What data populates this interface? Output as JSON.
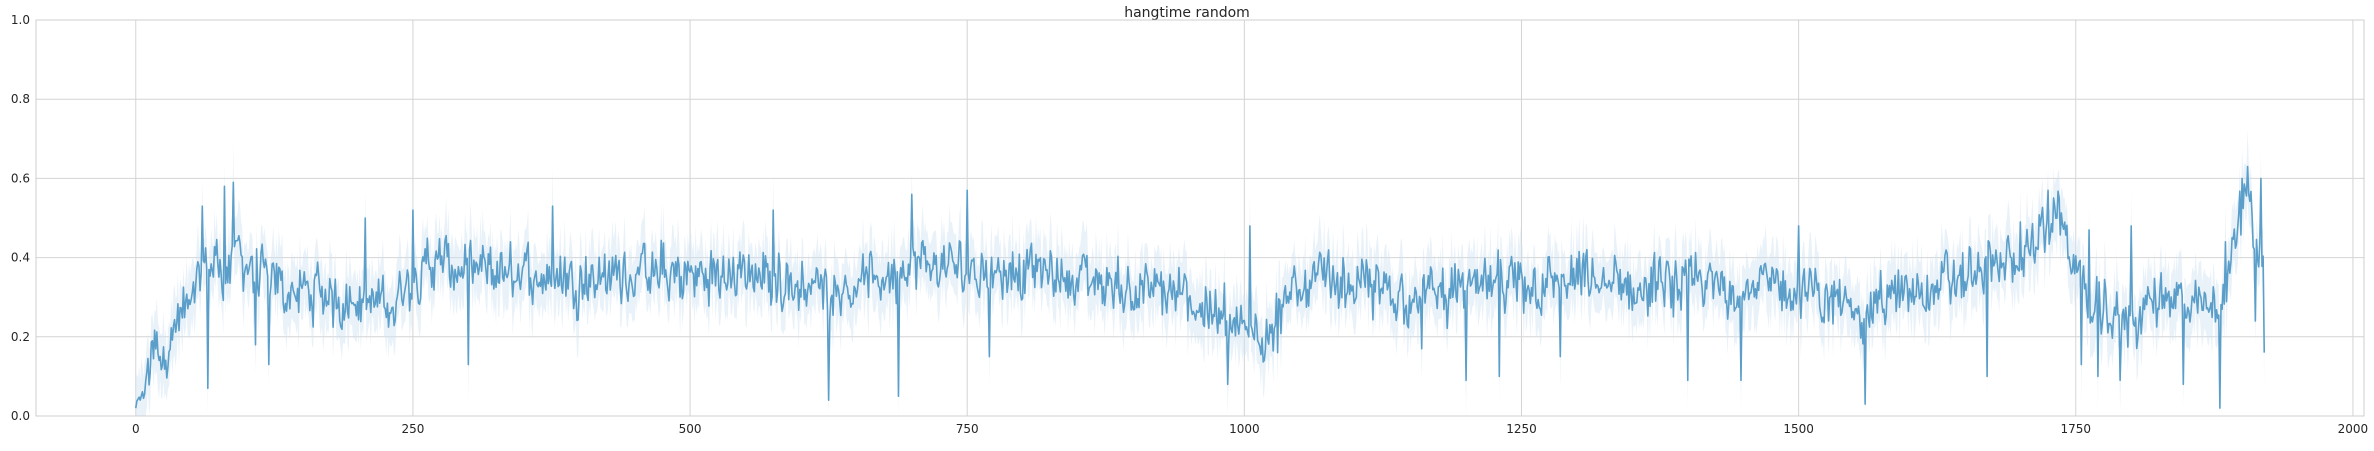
{
  "chart_data": {
    "type": "line",
    "title": "hangtime random",
    "xlabel": "",
    "ylabel": "",
    "xlim": [
      -90,
      2010
    ],
    "ylim": [
      0.0,
      1.0
    ],
    "xticks": [
      0,
      250,
      500,
      750,
      1000,
      1250,
      1500,
      1750,
      2000
    ],
    "xtick_labels": [
      "0",
      "250",
      "500",
      "750",
      "1000",
      "1250",
      "1500",
      "1750",
      "2000"
    ],
    "yticks": [
      0.0,
      0.2,
      0.4,
      0.6,
      0.8,
      1.0
    ],
    "ytick_labels": [
      "0.0",
      "0.2",
      "0.4",
      "0.6",
      "0.8",
      "1.0"
    ],
    "grid": true,
    "legend": "none",
    "series": [
      {
        "x_start": 0,
        "x_end": 1920,
        "n_points": 1921,
        "color": "#5a9ec9",
        "band_color": "#cfe3f2",
        "band": "shaded confidence interval around line",
        "profile": [
          [
            0,
            0.03
          ],
          [
            8,
            0.06
          ],
          [
            15,
            0.18
          ],
          [
            25,
            0.16
          ],
          [
            35,
            0.22
          ],
          [
            50,
            0.28
          ],
          [
            60,
            0.36
          ],
          [
            70,
            0.4
          ],
          [
            80,
            0.36
          ],
          [
            90,
            0.42
          ],
          [
            100,
            0.38
          ],
          [
            120,
            0.33
          ],
          [
            150,
            0.31
          ],
          [
            180,
            0.3
          ],
          [
            200,
            0.3
          ],
          [
            230,
            0.27
          ],
          [
            250,
            0.36
          ],
          [
            270,
            0.39
          ],
          [
            300,
            0.36
          ],
          [
            350,
            0.36
          ],
          [
            400,
            0.35
          ],
          [
            450,
            0.36
          ],
          [
            500,
            0.35
          ],
          [
            550,
            0.36
          ],
          [
            600,
            0.33
          ],
          [
            650,
            0.33
          ],
          [
            700,
            0.38
          ],
          [
            750,
            0.37
          ],
          [
            800,
            0.37
          ],
          [
            850,
            0.35
          ],
          [
            900,
            0.32
          ],
          [
            940,
            0.3
          ],
          [
            960,
            0.28
          ],
          [
            980,
            0.25
          ],
          [
            1000,
            0.2
          ],
          [
            1020,
            0.23
          ],
          [
            1040,
            0.29
          ],
          [
            1060,
            0.34
          ],
          [
            1100,
            0.33
          ],
          [
            1150,
            0.3
          ],
          [
            1200,
            0.32
          ],
          [
            1250,
            0.33
          ],
          [
            1300,
            0.34
          ],
          [
            1350,
            0.32
          ],
          [
            1400,
            0.33
          ],
          [
            1450,
            0.33
          ],
          [
            1500,
            0.32
          ],
          [
            1550,
            0.27
          ],
          [
            1600,
            0.31
          ],
          [
            1650,
            0.35
          ],
          [
            1680,
            0.38
          ],
          [
            1700,
            0.4
          ],
          [
            1720,
            0.46
          ],
          [
            1735,
            0.51
          ],
          [
            1745,
            0.42
          ],
          [
            1760,
            0.28
          ],
          [
            1780,
            0.25
          ],
          [
            1800,
            0.24
          ],
          [
            1830,
            0.31
          ],
          [
            1860,
            0.26
          ],
          [
            1880,
            0.28
          ],
          [
            1890,
            0.4
          ],
          [
            1898,
            0.5
          ],
          [
            1905,
            0.57
          ],
          [
            1912,
            0.47
          ],
          [
            1920,
            0.35
          ]
        ],
        "extremes": [
          [
            0,
            0.02
          ],
          [
            60,
            0.53
          ],
          [
            65,
            0.07
          ],
          [
            80,
            0.58
          ],
          [
            88,
            0.59
          ],
          [
            108,
            0.18
          ],
          [
            120,
            0.13
          ],
          [
            207,
            0.5
          ],
          [
            250,
            0.52
          ],
          [
            300,
            0.13
          ],
          [
            376,
            0.53
          ],
          [
            575,
            0.52
          ],
          [
            625,
            0.04
          ],
          [
            688,
            0.05
          ],
          [
            700,
            0.56
          ],
          [
            750,
            0.57
          ],
          [
            770,
            0.15
          ],
          [
            985,
            0.08
          ],
          [
            1005,
            0.48
          ],
          [
            1030,
            0.16
          ],
          [
            1160,
            0.17
          ],
          [
            1200,
            0.09
          ],
          [
            1230,
            0.1
          ],
          [
            1285,
            0.15
          ],
          [
            1400,
            0.09
          ],
          [
            1448,
            0.09
          ],
          [
            1500,
            0.48
          ],
          [
            1560,
            0.03
          ],
          [
            1670,
            0.1
          ],
          [
            1700,
            0.49
          ],
          [
            1725,
            0.57
          ],
          [
            1755,
            0.13
          ],
          [
            1762,
            0.47
          ],
          [
            1770,
            0.1
          ],
          [
            1790,
            0.09
          ],
          [
            1800,
            0.48
          ],
          [
            1847,
            0.08
          ],
          [
            1880,
            0.02
          ],
          [
            1885,
            0.44
          ],
          [
            1900,
            0.6
          ],
          [
            1905,
            0.63
          ],
          [
            1912,
            0.24
          ],
          [
            1917,
            0.6
          ],
          [
            1920,
            0.16
          ]
        ],
        "noise_amplitude": 0.09
      }
    ]
  }
}
